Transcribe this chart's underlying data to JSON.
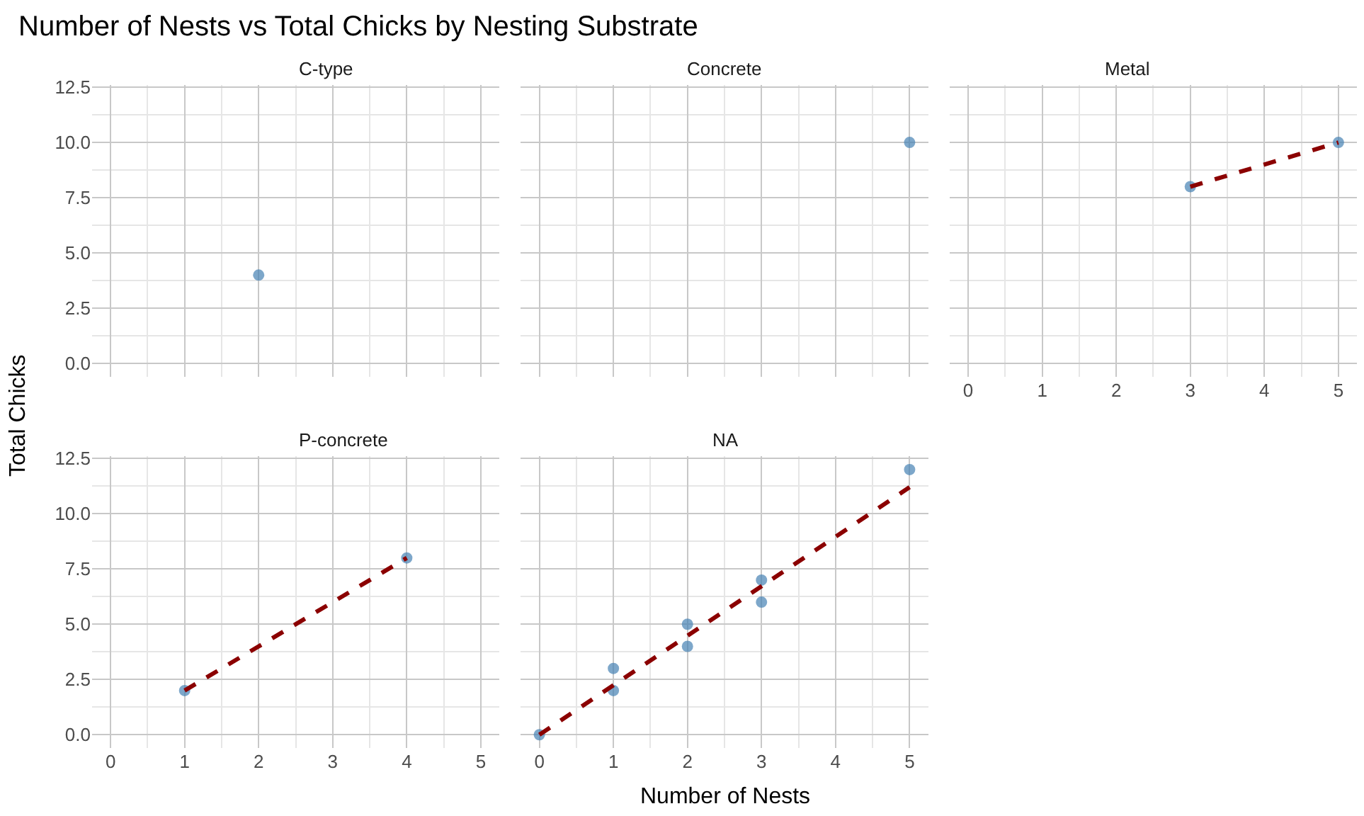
{
  "chart_data": [
    {
      "type": "scatter",
      "title": "C-type",
      "annotations": [
        "Number of Nests vs Total Chicks by Nesting Substrate"
      ],
      "ylabel": "Total Chicks",
      "tick_labels": "y",
      "grid": true,
      "marker": "circle",
      "series": [
        {
          "color": "#4682b4",
          "x": [
            2
          ],
          "values": [
            4
          ]
        }
      ],
      "xlim": [
        -0.25,
        5.25
      ],
      "ylim": [
        -0.6,
        12.6
      ],
      "xticks": [
        0,
        1,
        2,
        3,
        4,
        5
      ],
      "yticks": [
        {
          "value": 0,
          "label": "0.0"
        },
        {
          "value": 2.5,
          "label": "2.5"
        },
        {
          "value": 5,
          "label": "5.0"
        },
        {
          "value": 7.5,
          "label": "7.5"
        },
        {
          "value": 10,
          "label": "10.0"
        },
        {
          "value": 12.5,
          "label": "12.5"
        }
      ]
    },
    {
      "type": "scatter",
      "title": "Concrete",
      "tick_labels": false,
      "grid": true,
      "marker": "circle",
      "series": [
        {
          "color": "#4682b4",
          "x": [
            5
          ],
          "values": [
            10
          ]
        }
      ],
      "xlim": [
        -0.25,
        5.25
      ],
      "ylim": [
        -0.6,
        12.6
      ],
      "xticks": [
        0,
        1,
        2,
        3,
        4,
        5
      ],
      "yticks": [
        0,
        2.5,
        5,
        7.5,
        10,
        12.5
      ]
    },
    {
      "type": "scatter",
      "title": "Metal",
      "tick_labels": "x",
      "grid": true,
      "series": [
        {
          "color": "#4682b4",
          "marker": "circle",
          "x": [
            3,
            5
          ],
          "values": [
            8,
            10
          ]
        },
        {
          "type": "line",
          "marker": "none",
          "color": "#8b0000",
          "line_style": "dashed",
          "x": [
            3,
            5
          ],
          "values": [
            8,
            10
          ]
        }
      ],
      "xlim": [
        -0.25,
        5.25
      ],
      "ylim": [
        -0.6,
        12.6
      ],
      "xticks": [
        0,
        1,
        2,
        3,
        4,
        5
      ],
      "yticks": [
        0,
        2.5,
        5,
        7.5,
        10,
        12.5
      ]
    },
    {
      "type": "scatter",
      "title": "P-concrete",
      "grid": true,
      "series": [
        {
          "color": "#4682b4",
          "marker": "circle",
          "x": [
            1,
            4
          ],
          "values": [
            2,
            8
          ]
        },
        {
          "type": "line",
          "marker": "none",
          "color": "#8b0000",
          "line_style": "dashed",
          "x": [
            1,
            4
          ],
          "values": [
            2,
            8
          ]
        }
      ],
      "xlim": [
        -0.25,
        5.25
      ],
      "ylim": [
        -0.6,
        12.6
      ],
      "xticks": [
        0,
        1,
        2,
        3,
        4,
        5
      ],
      "yticks": [
        {
          "value": 0,
          "label": "0.0"
        },
        {
          "value": 2.5,
          "label": "2.5"
        },
        {
          "value": 5,
          "label": "5.0"
        },
        {
          "value": 7.5,
          "label": "7.5"
        },
        {
          "value": 10,
          "label": "10.0"
        },
        {
          "value": 12.5,
          "label": "12.5"
        }
      ]
    },
    {
      "type": "scatter",
      "title": "NA",
      "xlabel": "Number of Nests",
      "tick_labels": "x",
      "grid": true,
      "series": [
        {
          "color": "#4682b4",
          "marker": "circle",
          "x": [
            0,
            1,
            1,
            2,
            2,
            3,
            3,
            5
          ],
          "values": [
            0,
            2,
            3,
            4,
            5,
            6,
            7,
            12
          ]
        },
        {
          "type": "line",
          "marker": "none",
          "color": "#8b0000",
          "line_style": "dashed",
          "x": [
            0,
            5
          ],
          "values": [
            0,
            11.2
          ]
        }
      ],
      "xlim": [
        -0.25,
        5.25
      ],
      "ylim": [
        -0.6,
        12.6
      ],
      "xticks": [
        0,
        1,
        2,
        3,
        4,
        5
      ],
      "yticks": [
        0,
        2.5,
        5,
        7.5,
        10,
        12.5
      ]
    }
  ]
}
